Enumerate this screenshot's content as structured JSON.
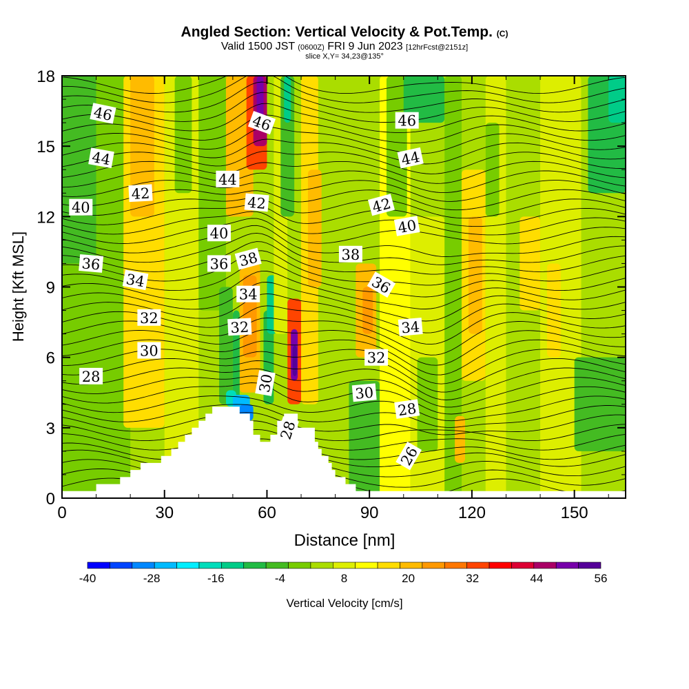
{
  "header": {
    "title": "Angled Section: Vertical Velocity & Pot.Temp.",
    "copyright": "(C)",
    "valid_prefix": "Valid 1500 JST",
    "valid_z": "(0600Z)",
    "valid_date": "FRI 9 Jun 2023",
    "forecast": "[12hrFcst@2151z]",
    "slice": "slice X,Y= 34,23@135°"
  },
  "chart_data": {
    "type": "heatmap",
    "xlabel": "Distance [nm]",
    "ylabel": "Height [Kft MSL]",
    "xlim": [
      0,
      165
    ],
    "ylim": [
      0,
      18
    ],
    "x_ticks": [
      "0",
      "30",
      "60",
      "90",
      "120",
      "150"
    ],
    "y_ticks": [
      "0",
      "3",
      "6",
      "9",
      "12",
      "15",
      "18"
    ],
    "x_tick_values": [
      0,
      30,
      60,
      90,
      120,
      150
    ],
    "y_tick_values": [
      0,
      3,
      6,
      9,
      12,
      15,
      18
    ],
    "colorbar": {
      "label": "Vertical Velocity [cm/s]",
      "min": -40,
      "max": 56,
      "step": 4,
      "tick_labels": [
        "-40",
        "-28",
        "-16",
        "-4",
        "8",
        "20",
        "32",
        "44",
        "56"
      ],
      "colors": [
        "#0000ff",
        "#0044ff",
        "#0088ff",
        "#00bbff",
        "#00eeff",
        "#00ddbb",
        "#00cc88",
        "#22bb44",
        "#44bb22",
        "#77cc00",
        "#aadd00",
        "#ddee00",
        "#ffff00",
        "#ffdd00",
        "#ffbb00",
        "#ff9900",
        "#ff7700",
        "#ff4400",
        "#ff0000",
        "#dd0033",
        "#aa0066",
        "#7700aa",
        "#550099"
      ]
    },
    "terrain_kft": [
      [
        0,
        0.3
      ],
      [
        10,
        0.3
      ],
      [
        10,
        0.6
      ],
      [
        17,
        0.6
      ],
      [
        17,
        0.9
      ],
      [
        20,
        0.9
      ],
      [
        20,
        1.2
      ],
      [
        23,
        1.2
      ],
      [
        23,
        1.5
      ],
      [
        29,
        1.5
      ],
      [
        29,
        1.8
      ],
      [
        32,
        1.8
      ],
      [
        32,
        2.1
      ],
      [
        34,
        2.1
      ],
      [
        34,
        2.4
      ],
      [
        36,
        2.4
      ],
      [
        36,
        2.7
      ],
      [
        38,
        2.7
      ],
      [
        38,
        3.0
      ],
      [
        40,
        3.0
      ],
      [
        40,
        3.3
      ],
      [
        42,
        3.3
      ],
      [
        42,
        3.6
      ],
      [
        44,
        3.6
      ],
      [
        44,
        3.9
      ],
      [
        52,
        3.9
      ],
      [
        52,
        3.6
      ],
      [
        55,
        3.6
      ],
      [
        55,
        3.3
      ],
      [
        56,
        3.3
      ],
      [
        56,
        2.7
      ],
      [
        58,
        2.7
      ],
      [
        58,
        2.4
      ],
      [
        61,
        2.4
      ],
      [
        61,
        2.7
      ],
      [
        63,
        2.7
      ],
      [
        63,
        3.3
      ],
      [
        65,
        3.3
      ],
      [
        65,
        3.6
      ],
      [
        69,
        3.6
      ],
      [
        69,
        3.0
      ],
      [
        74,
        3.0
      ],
      [
        74,
        2.4
      ],
      [
        75,
        2.4
      ],
      [
        75,
        2.1
      ],
      [
        76,
        2.1
      ],
      [
        76,
        1.8
      ],
      [
        78,
        1.8
      ],
      [
        78,
        1.5
      ],
      [
        79,
        1.5
      ],
      [
        79,
        1.2
      ],
      [
        80,
        1.2
      ],
      [
        80,
        0.9
      ],
      [
        83,
        0.9
      ],
      [
        83,
        0.6
      ],
      [
        86,
        0.6
      ],
      [
        86,
        0.3
      ],
      [
        165,
        0.3
      ]
    ],
    "velocity_cells": [
      {
        "x0": 0,
        "x1": 165,
        "y0": 0,
        "y1": 18,
        "v": 0
      },
      {
        "x0": 0,
        "x1": 20,
        "y0": 0,
        "y1": 18,
        "v": -4
      },
      {
        "x0": 18,
        "x1": 30,
        "y0": 3,
        "y1": 18,
        "v": 12
      },
      {
        "x0": 20,
        "x1": 27,
        "y0": 12,
        "y1": 18,
        "v": 16
      },
      {
        "x0": 0,
        "x1": 10,
        "y0": 10,
        "y1": 18,
        "v": -8
      },
      {
        "x0": 30,
        "x1": 40,
        "y0": 0,
        "y1": 18,
        "v": 4
      },
      {
        "x0": 33,
        "x1": 38,
        "y0": 13,
        "y1": 18,
        "v": -4
      },
      {
        "x0": 40,
        "x1": 48,
        "y0": 8,
        "y1": 18,
        "v": -4
      },
      {
        "x0": 46,
        "x1": 50,
        "y0": 4,
        "y1": 9,
        "v": -8
      },
      {
        "x0": 48,
        "x1": 56,
        "y0": 12,
        "y1": 18,
        "v": 16
      },
      {
        "x0": 52,
        "x1": 58,
        "y0": 4.5,
        "y1": 10,
        "v": 16
      },
      {
        "x0": 53,
        "x1": 57,
        "y0": 6,
        "y1": 9.5,
        "v": 20
      },
      {
        "x0": 54,
        "x1": 60,
        "y0": 14,
        "y1": 18,
        "v": 28
      },
      {
        "x0": 56,
        "x1": 60,
        "y0": 15,
        "y1": 18,
        "v": 40
      },
      {
        "x0": 57,
        "x1": 59,
        "y0": 16,
        "y1": 18,
        "v": 44
      },
      {
        "x0": 50,
        "x1": 52,
        "y0": 4,
        "y1": 8,
        "v": -12
      },
      {
        "x0": 48,
        "x1": 51,
        "y0": 3.9,
        "y1": 4.6,
        "v": -20
      },
      {
        "x0": 50,
        "x1": 55,
        "y0": 3.6,
        "y1": 4.4,
        "v": -28
      },
      {
        "x0": 52,
        "x1": 56,
        "y0": 3.3,
        "y1": 4.0,
        "v": -32
      },
      {
        "x0": 59,
        "x1": 62,
        "y0": 4,
        "y1": 8,
        "v": -12
      },
      {
        "x0": 60,
        "x1": 63,
        "y0": 7,
        "y1": 9.5,
        "v": -16
      },
      {
        "x0": 62,
        "x1": 66,
        "y0": 7,
        "y1": 18,
        "v": 4
      },
      {
        "x0": 64,
        "x1": 68,
        "y0": 12,
        "y1": 18,
        "v": -8
      },
      {
        "x0": 65,
        "x1": 67,
        "y0": 16,
        "y1": 18,
        "v": -16
      },
      {
        "x0": 66,
        "x1": 70,
        "y0": 4,
        "y1": 8.5,
        "v": 28
      },
      {
        "x0": 67,
        "x1": 69,
        "y0": 5,
        "y1": 7.2,
        "v": 44
      },
      {
        "x0": 67.5,
        "x1": 68.8,
        "y0": 5.2,
        "y1": 6.5,
        "v": 56
      },
      {
        "x0": 70,
        "x1": 75,
        "y0": 4,
        "y1": 18,
        "v": 12
      },
      {
        "x0": 72,
        "x1": 76,
        "y0": 9,
        "y1": 14,
        "v": 16
      },
      {
        "x0": 76,
        "x1": 86,
        "y0": 0,
        "y1": 18,
        "v": 0
      },
      {
        "x0": 84,
        "x1": 93,
        "y0": 0,
        "y1": 5,
        "v": -8
      },
      {
        "x0": 86,
        "x1": 92,
        "y0": 6,
        "y1": 10,
        "v": 16
      },
      {
        "x0": 88,
        "x1": 91,
        "y0": 7,
        "y1": 9,
        "v": 20
      },
      {
        "x0": 93,
        "x1": 102,
        "y0": 0,
        "y1": 18,
        "v": 8
      },
      {
        "x0": 95,
        "x1": 101,
        "y0": 12,
        "y1": 18,
        "v": -4
      },
      {
        "x0": 100,
        "x1": 112,
        "y0": 16,
        "y1": 18,
        "v": -12
      },
      {
        "x0": 102,
        "x1": 112,
        "y0": 0,
        "y1": 12,
        "v": 4
      },
      {
        "x0": 104,
        "x1": 110,
        "y0": 2,
        "y1": 6,
        "v": -4
      },
      {
        "x0": 112,
        "x1": 117,
        "y0": 0,
        "y1": 18,
        "v": -4
      },
      {
        "x0": 115,
        "x1": 118,
        "y0": 1.5,
        "y1": 3.5,
        "v": 16
      },
      {
        "x0": 117,
        "x1": 124,
        "y0": 5,
        "y1": 14,
        "v": 12
      },
      {
        "x0": 119,
        "x1": 123,
        "y0": 7,
        "y1": 12,
        "v": 16
      },
      {
        "x0": 124,
        "x1": 130,
        "y0": 0,
        "y1": 18,
        "v": 4
      },
      {
        "x0": 124,
        "x1": 128,
        "y0": 12,
        "y1": 16,
        "v": -4
      },
      {
        "x0": 130,
        "x1": 140,
        "y0": 0,
        "y1": 18,
        "v": 0
      },
      {
        "x0": 134,
        "x1": 140,
        "y0": 8,
        "y1": 12,
        "v": 12
      },
      {
        "x0": 140,
        "x1": 152,
        "y0": 0,
        "y1": 18,
        "v": 4
      },
      {
        "x0": 142,
        "x1": 146,
        "y0": 6,
        "y1": 10,
        "v": 12
      },
      {
        "x0": 150,
        "x1": 165,
        "y0": 2,
        "y1": 6,
        "v": -8
      },
      {
        "x0": 152,
        "x1": 165,
        "y0": 10,
        "y1": 18,
        "v": 0
      },
      {
        "x0": 154,
        "x1": 165,
        "y0": 13,
        "y1": 18,
        "v": -12
      },
      {
        "x0": 160,
        "x1": 165,
        "y0": 16,
        "y1": 18,
        "v": -16
      }
    ],
    "isotherm_labels": [
      {
        "text": "46",
        "x": 12.0,
        "y": 16.4,
        "rot": 12
      },
      {
        "text": "44",
        "x": 11.5,
        "y": 14.5,
        "rot": 10
      },
      {
        "text": "42",
        "x": 23.0,
        "y": 13.0,
        "rot": -3
      },
      {
        "text": "40",
        "x": 5.5,
        "y": 12.4,
        "rot": 0
      },
      {
        "text": "36",
        "x": 8.5,
        "y": 10.0,
        "rot": 5
      },
      {
        "text": "34",
        "x": 21.5,
        "y": 9.3,
        "rot": 10
      },
      {
        "text": "32",
        "x": 25.5,
        "y": 7.7,
        "rot": 0
      },
      {
        "text": "30",
        "x": 25.5,
        "y": 6.3,
        "rot": 0
      },
      {
        "text": "28",
        "x": 8.5,
        "y": 5.2,
        "rot": 0
      },
      {
        "text": "46",
        "x": 58.5,
        "y": 16.0,
        "rot": 20
      },
      {
        "text": "44",
        "x": 48.5,
        "y": 13.6,
        "rot": 0
      },
      {
        "text": "42",
        "x": 57.0,
        "y": 12.6,
        "rot": 5
      },
      {
        "text": "40",
        "x": 46.0,
        "y": 11.3,
        "rot": 0
      },
      {
        "text": "38",
        "x": 54.5,
        "y": 10.2,
        "rot": -15
      },
      {
        "text": "36",
        "x": 46.0,
        "y": 10.0,
        "rot": 0
      },
      {
        "text": "34",
        "x": 54.5,
        "y": 8.7,
        "rot": 0
      },
      {
        "text": "32",
        "x": 52.0,
        "y": 7.3,
        "rot": -3
      },
      {
        "text": "30",
        "x": 59.5,
        "y": 4.9,
        "rot": -80
      },
      {
        "text": "28",
        "x": 66.0,
        "y": 2.9,
        "rot": -72
      },
      {
        "text": "46",
        "x": 101.0,
        "y": 16.1,
        "rot": 0
      },
      {
        "text": "44",
        "x": 102.0,
        "y": 14.5,
        "rot": -12
      },
      {
        "text": "42",
        "x": 93.5,
        "y": 12.5,
        "rot": -15
      },
      {
        "text": "40",
        "x": 101.0,
        "y": 11.6,
        "rot": -10
      },
      {
        "text": "38",
        "x": 84.5,
        "y": 10.4,
        "rot": 0
      },
      {
        "text": "36",
        "x": 93.5,
        "y": 9.1,
        "rot": 30
      },
      {
        "text": "34",
        "x": 102.0,
        "y": 7.3,
        "rot": -5
      },
      {
        "text": "32",
        "x": 92.0,
        "y": 6.0,
        "rot": 0
      },
      {
        "text": "30",
        "x": 88.5,
        "y": 4.5,
        "rot": -5
      },
      {
        "text": "28",
        "x": 101.0,
        "y": 3.8,
        "rot": -8
      },
      {
        "text": "26",
        "x": 101.5,
        "y": 1.8,
        "rot": -60
      }
    ],
    "isotherm_levels": [
      0.5,
      0.9,
      1.3,
      1.7,
      2.0,
      2.4,
      2.8,
      3.2,
      3.6,
      4.0,
      4.4,
      4.8,
      5.2,
      5.6,
      6.0,
      6.4,
      6.8,
      7.2,
      7.6,
      8.0,
      8.4,
      8.8,
      9.2,
      9.6,
      10.0,
      10.4,
      10.8,
      11.2,
      11.6,
      12.0,
      12.4,
      12.8,
      13.2,
      13.6,
      14.0,
      14.4,
      14.8,
      15.2,
      15.6,
      16.0,
      16.4,
      16.8,
      17.2,
      17.6
    ]
  }
}
